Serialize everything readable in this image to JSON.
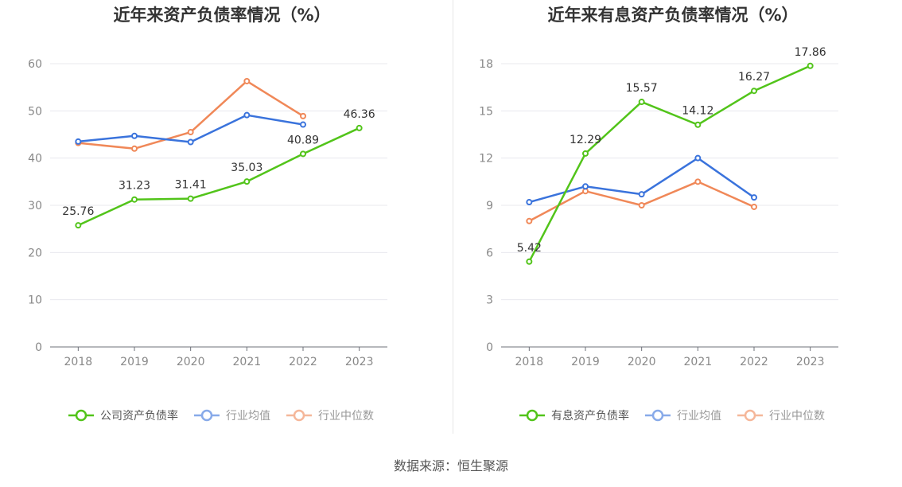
{
  "source": "数据来源：恒生聚源",
  "colors": {
    "company": "#52c41a",
    "avg": "#3a73dc",
    "median": "#f08858"
  },
  "chart_data": [
    {
      "type": "line",
      "title": "近年来资产负债率情况（%）",
      "categories": [
        "2018",
        "2019",
        "2020",
        "2021",
        "2022",
        "2023"
      ],
      "ylim": [
        0,
        60
      ],
      "yticks": [
        0,
        10,
        20,
        30,
        40,
        50,
        60
      ],
      "grid": true,
      "legend_position": "bottom",
      "series": [
        {
          "name": "公司资产负债率",
          "key": "company",
          "values": [
            25.76,
            31.23,
            31.41,
            35.03,
            40.89,
            46.36
          ],
          "labels": [
            "25.76",
            "31.23",
            "31.41",
            "35.03",
            "40.89",
            "46.36"
          ]
        },
        {
          "name": "行业均值",
          "key": "avg",
          "values": [
            43.5,
            44.7,
            43.4,
            49.1,
            47.1,
            null
          ]
        },
        {
          "name": "行业中位数",
          "key": "median",
          "values": [
            43.2,
            42.0,
            45.5,
            56.3,
            48.9,
            null
          ]
        }
      ]
    },
    {
      "type": "line",
      "title": "近年来有息资产负债率情况（%）",
      "categories": [
        "2018",
        "2019",
        "2020",
        "2021",
        "2022",
        "2023"
      ],
      "ylim": [
        0,
        18
      ],
      "yticks": [
        0,
        3,
        6,
        9,
        12,
        15,
        18
      ],
      "grid": true,
      "legend_position": "bottom",
      "series": [
        {
          "name": "有息资产负债率",
          "key": "company",
          "values": [
            5.42,
            12.29,
            15.57,
            14.12,
            16.27,
            17.86
          ],
          "labels": [
            "5.42",
            "12.29",
            "15.57",
            "14.12",
            "16.27",
            "17.86"
          ]
        },
        {
          "name": "行业均值",
          "key": "avg",
          "values": [
            9.2,
            10.2,
            9.7,
            12.0,
            9.5,
            null
          ]
        },
        {
          "name": "行业中位数",
          "key": "median",
          "values": [
            8.0,
            9.9,
            9.0,
            10.5,
            8.9,
            null
          ]
        }
      ]
    }
  ]
}
